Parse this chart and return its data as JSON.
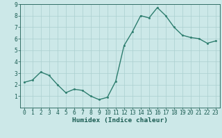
{
  "x": [
    0,
    1,
    2,
    3,
    4,
    5,
    6,
    7,
    8,
    9,
    10,
    11,
    12,
    13,
    14,
    15,
    16,
    17,
    18,
    19,
    20,
    21,
    22,
    23
  ],
  "y": [
    2.2,
    2.4,
    3.1,
    2.8,
    2.0,
    1.3,
    1.6,
    1.5,
    1.0,
    0.7,
    0.9,
    2.3,
    5.4,
    6.6,
    8.0,
    7.8,
    8.7,
    8.0,
    7.0,
    6.3,
    6.1,
    6.0,
    5.6,
    5.8
  ],
  "line_color": "#2d7d6e",
  "marker": "o",
  "marker_size": 1.8,
  "linewidth": 1.0,
  "bg_color": "#cce8e8",
  "grid_color": "#aacfcf",
  "xlabel": "Humidex (Indice chaleur)",
  "xlabel_color": "#1a5c52",
  "tick_color": "#1a5c52",
  "ylim": [
    0,
    9
  ],
  "xlim": [
    -0.5,
    23.5
  ],
  "yticks": [
    1,
    2,
    3,
    4,
    5,
    6,
    7,
    8,
    9
  ],
  "xticks": [
    0,
    1,
    2,
    3,
    4,
    5,
    6,
    7,
    8,
    9,
    10,
    11,
    12,
    13,
    14,
    15,
    16,
    17,
    18,
    19,
    20,
    21,
    22,
    23
  ],
  "xlabel_fontsize": 6.8,
  "tick_fontsize": 5.8
}
